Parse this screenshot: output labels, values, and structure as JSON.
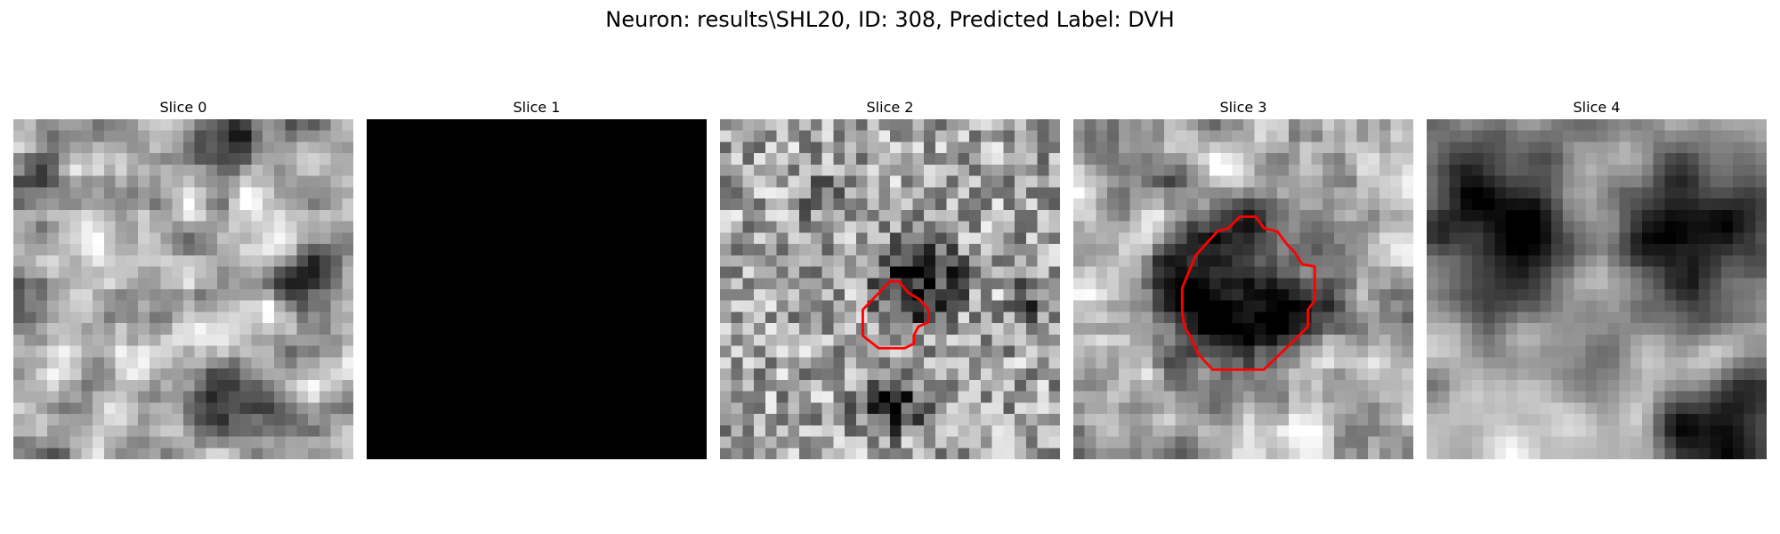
{
  "figure": {
    "title": "Neuron: results\\SHL20, ID: 308, Predicted Label: DVH"
  },
  "colors": {
    "background": "#ffffff",
    "contour": "#ff0000",
    "colormap": "gray"
  },
  "panels": [
    {
      "title": "Slice 0",
      "image": "noisy grayscale microscopy patch, light background with dark blobs",
      "contour": false
    },
    {
      "title": "Slice 1",
      "image": "uniform black",
      "contour": false
    },
    {
      "title": "Slice 2",
      "image": "noisy grayscale microscopy patch with small dark cell",
      "contour": true
    },
    {
      "title": "Slice 3",
      "image": "grayscale microscopy patch with large dark round cell",
      "contour": true
    },
    {
      "title": "Slice 4",
      "image": "grayscale microscopy patch with several dark round cells",
      "contour": false
    }
  ]
}
